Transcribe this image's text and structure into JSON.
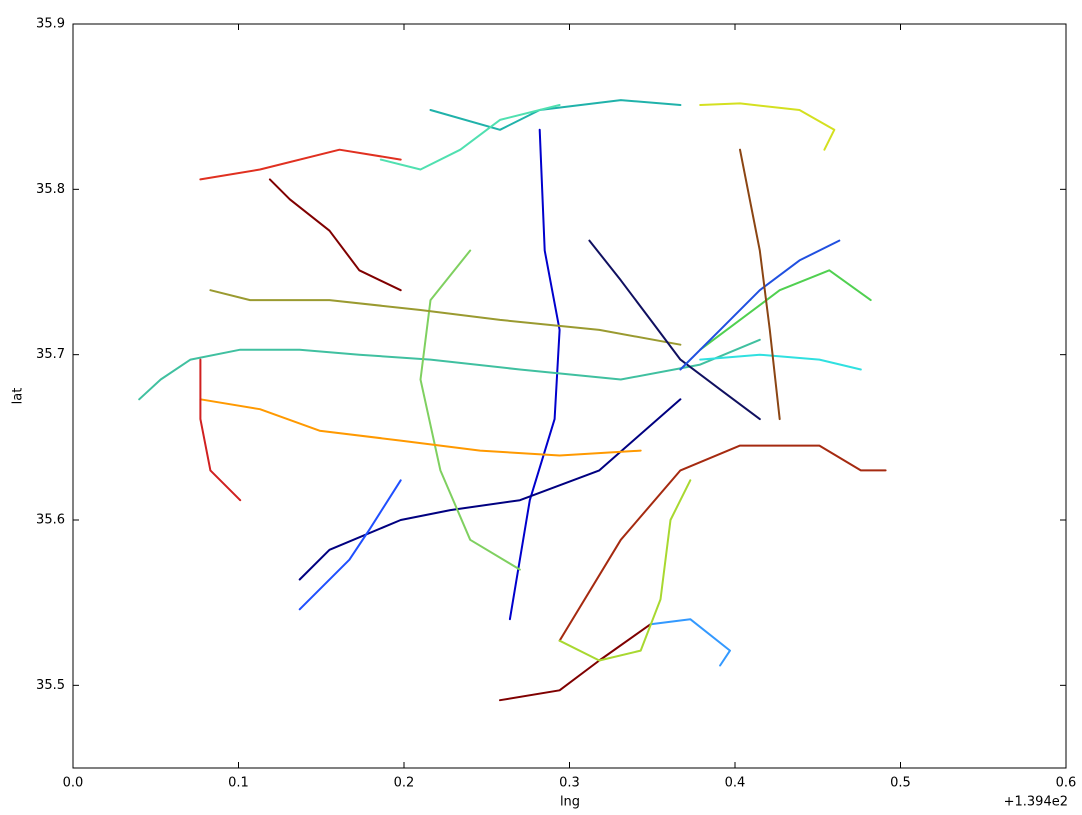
{
  "chart_data": {
    "type": "line",
    "x_label": "lng",
    "y_label": "lat",
    "x_offset_label": "+1.394e2",
    "xlim": [
      0,
      0.6
    ],
    "ylim": [
      35.45,
      35.9
    ],
    "xticks": [
      {
        "value": 0,
        "label": "0.0"
      },
      0.1,
      0.2,
      0.3,
      0.4,
      0.5,
      0.6
    ],
    "yticks": [
      35.5,
      35.6,
      35.7,
      35.8,
      35.9
    ],
    "grid": false,
    "series": [
      {
        "color": "#7f0000",
        "x": [
          0.258,
          0.294,
          0.318,
          0.349
        ],
        "values": [
          35.491,
          35.497,
          35.515,
          35.537
        ]
      },
      {
        "color": "#a52a10",
        "x": [
          0.294,
          0.331,
          0.367,
          0.403,
          0.451,
          0.476,
          0.491
        ],
        "values": [
          35.527,
          35.588,
          35.63,
          35.645,
          35.645,
          35.63,
          35.63
        ]
      },
      {
        "color": "#d4e020",
        "x": [
          0.379,
          0.403,
          0.439,
          0.46,
          0.454
        ],
        "values": [
          35.851,
          35.852,
          35.848,
          35.836,
          35.824
        ]
      },
      {
        "color": "#3399ff",
        "x": [
          0.349,
          0.373,
          0.397,
          0.391
        ],
        "values": [
          35.537,
          35.54,
          35.521,
          35.512
        ]
      },
      {
        "color": "#20b2aa",
        "x": [
          0.216,
          0.258,
          0.282,
          0.331,
          0.367
        ],
        "values": [
          35.848,
          35.836,
          35.848,
          35.854,
          35.851
        ]
      },
      {
        "color": "#0000cc",
        "x": [
          0.282,
          0.285,
          0.294,
          0.291,
          0.276,
          0.264
        ],
        "values": [
          35.836,
          35.763,
          35.715,
          35.661,
          35.612,
          35.54
        ]
      },
      {
        "color": "#000080",
        "x": [
          0.137,
          0.155,
          0.198,
          0.228,
          0.27,
          0.318,
          0.367
        ],
        "values": [
          35.564,
          35.582,
          35.6,
          35.606,
          35.612,
          35.63,
          35.673
        ]
      },
      {
        "color": "#40c0a0",
        "x": [
          0.04,
          0.053,
          0.071,
          0.101,
          0.137,
          0.173,
          0.216,
          0.27,
          0.331,
          0.379,
          0.415
        ],
        "values": [
          35.673,
          35.685,
          35.697,
          35.703,
          35.703,
          35.7,
          35.697,
          35.691,
          35.685,
          35.694,
          35.709
        ]
      },
      {
        "color": "#7fd060",
        "x": [
          0.24,
          0.216,
          0.21,
          0.222,
          0.24,
          0.27
        ],
        "values": [
          35.763,
          35.733,
          35.685,
          35.63,
          35.588,
          35.57
        ]
      },
      {
        "color": "#e03020",
        "x": [
          0.077,
          0.113,
          0.161,
          0.198
        ],
        "values": [
          35.806,
          35.812,
          35.824,
          35.818
        ]
      },
      {
        "color": "#ff9900",
        "x": [
          0.077,
          0.113,
          0.149,
          0.198,
          0.246,
          0.294,
          0.343
        ],
        "values": [
          35.673,
          35.667,
          35.654,
          35.648,
          35.642,
          35.639,
          35.642
        ]
      },
      {
        "color": "#800000",
        "x": [
          0.119,
          0.131,
          0.155,
          0.173,
          0.198
        ],
        "values": [
          35.806,
          35.794,
          35.775,
          35.751,
          35.739
        ]
      },
      {
        "color": "#1f4fff",
        "x": [
          0.137,
          0.149,
          0.167,
          0.179,
          0.198
        ],
        "values": [
          35.546,
          35.558,
          35.576,
          35.594,
          35.624
        ]
      },
      {
        "color": "#9a9a30",
        "x": [
          0.083,
          0.107,
          0.155,
          0.21,
          0.258,
          0.318,
          0.367
        ],
        "values": [
          35.739,
          35.733,
          35.733,
          35.727,
          35.721,
          35.715,
          35.706
        ]
      },
      {
        "color": "#101060",
        "x": [
          0.312,
          0.331,
          0.349,
          0.367,
          0.391,
          0.415
        ],
        "values": [
          35.769,
          35.745,
          35.721,
          35.697,
          35.679,
          35.661
        ]
      },
      {
        "color": "#30e0e0",
        "x": [
          0.379,
          0.415,
          0.451,
          0.476
        ],
        "values": [
          35.697,
          35.7,
          35.697,
          35.691
        ]
      },
      {
        "color": "#50d050",
        "x": [
          0.379,
          0.403,
          0.427,
          0.457,
          0.482
        ],
        "values": [
          35.703,
          35.721,
          35.739,
          35.751,
          35.733
        ]
      },
      {
        "color": "#d02020",
        "x": [
          0.077,
          0.077,
          0.083,
          0.101
        ],
        "values": [
          35.697,
          35.661,
          35.63,
          35.612
        ]
      },
      {
        "color": "#a8d830",
        "x": [
          0.294,
          0.318,
          0.343,
          0.355,
          0.361,
          0.373
        ],
        "values": [
          35.527,
          35.515,
          35.521,
          35.552,
          35.6,
          35.624
        ]
      },
      {
        "color": "#2050e0",
        "x": [
          0.367,
          0.391,
          0.415,
          0.439,
          0.463
        ],
        "values": [
          35.691,
          35.715,
          35.739,
          35.757,
          35.769
        ]
      },
      {
        "color": "#8b4513",
        "x": [
          0.403,
          0.415,
          0.421,
          0.427
        ],
        "values": [
          35.824,
          35.763,
          35.715,
          35.661
        ]
      },
      {
        "color": "#50e0b0",
        "x": [
          0.186,
          0.21,
          0.234,
          0.258,
          0.294
        ],
        "values": [
          35.818,
          35.812,
          35.824,
          35.842,
          35.851
        ]
      }
    ]
  }
}
